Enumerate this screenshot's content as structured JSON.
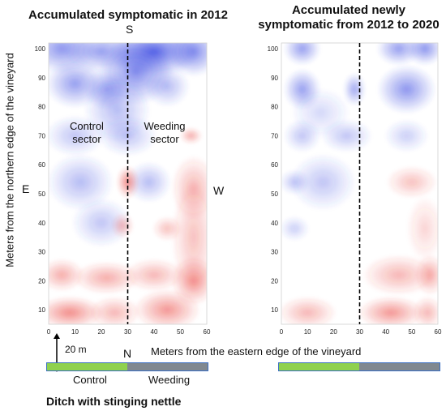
{
  "chart_data": [
    {
      "type": "heatmap",
      "title": "Accumulated symptomatic in 2012",
      "xlabel": "Meters from the eastern edge of the vineyard",
      "ylabel": "Meters from the northern edge of the vineyard",
      "xlim": [
        0,
        60
      ],
      "ylim": [
        5,
        102
      ],
      "xticks": [
        0,
        10,
        20,
        30,
        40,
        50,
        60
      ],
      "yticks": [
        10,
        20,
        30,
        40,
        50,
        60,
        70,
        80,
        90,
        100
      ],
      "colors": {
        "high_north": "#2f3fe0",
        "high_south": "#e8302a"
      },
      "divider_x": 30,
      "blobs": [
        {
          "x": 5,
          "y": 100,
          "rx": 9,
          "ry": 6,
          "c": "b",
          "a": 0.55
        },
        {
          "x": 20,
          "y": 99,
          "rx": 10,
          "ry": 5,
          "c": "b",
          "a": 0.5
        },
        {
          "x": 40,
          "y": 99,
          "rx": 12,
          "ry": 6,
          "c": "b",
          "a": 0.8
        },
        {
          "x": 55,
          "y": 99,
          "rx": 7,
          "ry": 6,
          "c": "b",
          "a": 0.6
        },
        {
          "x": 33,
          "y": 92,
          "rx": 10,
          "ry": 8,
          "c": "b",
          "a": 0.6
        },
        {
          "x": 10,
          "y": 88,
          "rx": 8,
          "ry": 6,
          "c": "b",
          "a": 0.5
        },
        {
          "x": 22,
          "y": 86,
          "rx": 6,
          "ry": 5,
          "c": "b",
          "a": 0.45
        },
        {
          "x": 45,
          "y": 87,
          "rx": 6,
          "ry": 5,
          "c": "b",
          "a": 0.35
        },
        {
          "x": 26,
          "y": 79,
          "rx": 9,
          "ry": 8,
          "c": "b",
          "a": 0.35
        },
        {
          "x": 10,
          "y": 70,
          "rx": 8,
          "ry": 5,
          "c": "b",
          "a": 0.3
        },
        {
          "x": 30,
          "y": 70,
          "rx": 8,
          "ry": 5,
          "c": "b",
          "a": 0.3
        },
        {
          "x": 54,
          "y": 70,
          "rx": 3,
          "ry": 2,
          "c": "r",
          "a": 0.4
        },
        {
          "x": 12,
          "y": 54,
          "rx": 9,
          "ry": 7,
          "c": "b",
          "a": 0.35
        },
        {
          "x": 38,
          "y": 54,
          "rx": 6,
          "ry": 5,
          "c": "b",
          "a": 0.35
        },
        {
          "x": 30,
          "y": 54,
          "rx": 3,
          "ry": 4,
          "c": "r",
          "a": 0.55
        },
        {
          "x": 55,
          "y": 52,
          "rx": 6,
          "ry": 8,
          "c": "r",
          "a": 0.35
        },
        {
          "x": 20,
          "y": 40,
          "rx": 8,
          "ry": 6,
          "c": "b",
          "a": 0.3
        },
        {
          "x": 28,
          "y": 39,
          "rx": 3,
          "ry": 3,
          "c": "r",
          "a": 0.35
        },
        {
          "x": 55,
          "y": 35,
          "rx": 6,
          "ry": 14,
          "c": "r",
          "a": 0.3
        },
        {
          "x": 45,
          "y": 38,
          "rx": 4,
          "ry": 3,
          "c": "r",
          "a": 0.3
        },
        {
          "x": 5,
          "y": 22,
          "rx": 6,
          "ry": 4,
          "c": "r",
          "a": 0.4
        },
        {
          "x": 22,
          "y": 21,
          "rx": 9,
          "ry": 4,
          "c": "r",
          "a": 0.4
        },
        {
          "x": 40,
          "y": 22,
          "rx": 8,
          "ry": 4,
          "c": "r",
          "a": 0.35
        },
        {
          "x": 55,
          "y": 20,
          "rx": 6,
          "ry": 6,
          "c": "r",
          "a": 0.5
        },
        {
          "x": 8,
          "y": 9,
          "rx": 9,
          "ry": 4,
          "c": "r",
          "a": 0.55
        },
        {
          "x": 25,
          "y": 9,
          "rx": 7,
          "ry": 4,
          "c": "r",
          "a": 0.35
        },
        {
          "x": 45,
          "y": 10,
          "rx": 9,
          "ry": 5,
          "c": "r",
          "a": 0.5
        }
      ]
    },
    {
      "type": "heatmap",
      "title": "Accumulated newly symptomatic from 2012 to 2020",
      "xlim": [
        0,
        60
      ],
      "ylim": [
        5,
        102
      ],
      "xticks": [
        0,
        10,
        20,
        30,
        40,
        50,
        60
      ],
      "yticks": [
        10,
        20,
        30,
        40,
        50,
        60,
        70,
        80,
        90,
        100
      ],
      "divider_x": 30,
      "blobs": [
        {
          "x": 8,
          "y": 100,
          "rx": 5,
          "ry": 4,
          "c": "b",
          "a": 0.5
        },
        {
          "x": 45,
          "y": 100,
          "rx": 6,
          "ry": 4,
          "c": "b",
          "a": 0.5
        },
        {
          "x": 55,
          "y": 100,
          "rx": 5,
          "ry": 4,
          "c": "b",
          "a": 0.55
        },
        {
          "x": 8,
          "y": 86,
          "rx": 5,
          "ry": 5,
          "c": "b",
          "a": 0.5
        },
        {
          "x": 28,
          "y": 86,
          "rx": 3,
          "ry": 4,
          "c": "b",
          "a": 0.45
        },
        {
          "x": 48,
          "y": 86,
          "rx": 8,
          "ry": 6,
          "c": "b",
          "a": 0.55
        },
        {
          "x": 15,
          "y": 78,
          "rx": 8,
          "ry": 6,
          "c": "b",
          "a": 0.2
        },
        {
          "x": 8,
          "y": 70,
          "rx": 5,
          "ry": 4,
          "c": "b",
          "a": 0.3
        },
        {
          "x": 25,
          "y": 70,
          "rx": 7,
          "ry": 4,
          "c": "b",
          "a": 0.3
        },
        {
          "x": 48,
          "y": 70,
          "rx": 6,
          "ry": 4,
          "c": "b",
          "a": 0.25
        },
        {
          "x": 16,
          "y": 54,
          "rx": 9,
          "ry": 7,
          "c": "b",
          "a": 0.3
        },
        {
          "x": 5,
          "y": 54,
          "rx": 4,
          "ry": 3,
          "c": "b",
          "a": 0.3
        },
        {
          "x": 50,
          "y": 54,
          "rx": 7,
          "ry": 4,
          "c": "r",
          "a": 0.3
        },
        {
          "x": 5,
          "y": 38,
          "rx": 4,
          "ry": 3,
          "c": "b",
          "a": 0.25
        },
        {
          "x": 55,
          "y": 38,
          "rx": 5,
          "ry": 8,
          "c": "r",
          "a": 0.2
        },
        {
          "x": 45,
          "y": 22,
          "rx": 10,
          "ry": 5,
          "c": "r",
          "a": 0.35
        },
        {
          "x": 57,
          "y": 22,
          "rx": 4,
          "ry": 5,
          "c": "r",
          "a": 0.4
        },
        {
          "x": 10,
          "y": 9,
          "rx": 8,
          "ry": 4,
          "c": "r",
          "a": 0.35
        },
        {
          "x": 42,
          "y": 9,
          "rx": 9,
          "ry": 4,
          "c": "r",
          "a": 0.5
        },
        {
          "x": 56,
          "y": 9,
          "rx": 4,
          "ry": 4,
          "c": "r",
          "a": 0.35
        }
      ]
    }
  ],
  "labels": {
    "title_left": "Accumulated symptomatic in 2012",
    "title_right_line1": "Accumulated newly",
    "title_right_line2": "symptomatic from 2012 to 2020",
    "south": "S",
    "north": "N",
    "east": "E",
    "west": "W",
    "ylabel": "Meters from the northern edge of the vineyard",
    "xlabel": "Meters from the eastern edge of the vineyard",
    "control_sector_1": "Control",
    "control_sector_2": "sector",
    "weeding_sector_1": "Weeding",
    "weeding_sector_2": "sector",
    "distance": "20 m",
    "bar_control": "Control",
    "bar_weeding": "Weeding",
    "ditch": "Ditch with stinging nettle"
  },
  "colors": {
    "control_green": "#8fd14f",
    "weeding_gray": "#808890",
    "bar_border": "#3a6fc4"
  }
}
